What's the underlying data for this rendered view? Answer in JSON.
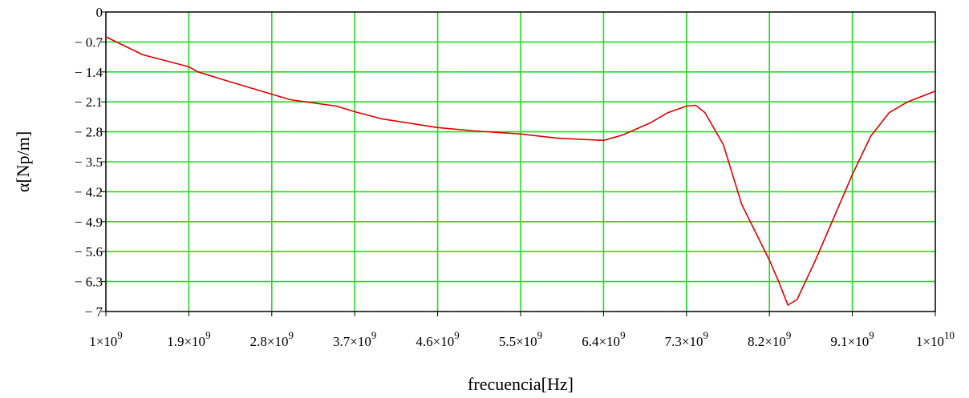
{
  "chart_data": {
    "type": "line",
    "title": "",
    "xlabel": "frecuencia[Hz]",
    "ylabel": "α[Np/m]",
    "xlim": [
      1000000000,
      10000000000
    ],
    "ylim": [
      -7,
      0
    ],
    "grid": true,
    "x_ticks": [
      1000000000,
      1900000000,
      2800000000,
      3700000000,
      4600000000,
      5500000000,
      6400000000,
      7300000000,
      8200000000,
      9100000000,
      10000000000
    ],
    "x_tick_labels": [
      {
        "mant": "1",
        "exp": "9"
      },
      {
        "mant": "1.9",
        "exp": "9"
      },
      {
        "mant": "2.8",
        "exp": "9"
      },
      {
        "mant": "3.7",
        "exp": "9"
      },
      {
        "mant": "4.6",
        "exp": "9"
      },
      {
        "mant": "5.5",
        "exp": "9"
      },
      {
        "mant": "6.4",
        "exp": "9"
      },
      {
        "mant": "7.3",
        "exp": "9"
      },
      {
        "mant": "8.2",
        "exp": "9"
      },
      {
        "mant": "9.1",
        "exp": "9"
      },
      {
        "mant": "1",
        "exp": "10"
      }
    ],
    "y_ticks": [
      0,
      -0.7,
      -1.4,
      -2.1,
      -2.8,
      -3.5,
      -4.2,
      -4.9,
      -5.6,
      -6.3,
      -7
    ],
    "y_tick_labels": [
      "0",
      "− 0.7",
      "− 1.4",
      "− 2.1",
      "− 2.8",
      "− 3.5",
      "− 4.2",
      "− 4.9",
      "− 5.6",
      "− 6.3",
      "− 7"
    ],
    "series": [
      {
        "color": "#e00000",
        "x": [
          1000000000,
          1400000000,
          1900000000,
          2000000000,
          2300000000,
          2800000000,
          3000000000,
          3500000000,
          3700000000,
          4000000000,
          4600000000,
          5000000000,
          5500000000,
          5900000000,
          6400000000,
          6600000000,
          6900000000,
          7100000000,
          7300000000,
          7400000000,
          7500000000,
          7700000000,
          7900000000,
          8200000000,
          8300000000,
          8400000000,
          8500000000,
          8700000000,
          8900000000,
          9100000000,
          9300000000,
          9500000000,
          9700000000,
          10000000000
        ],
        "y": [
          -0.58,
          -1.0,
          -1.28,
          -1.4,
          -1.6,
          -1.92,
          -2.05,
          -2.2,
          -2.33,
          -2.5,
          -2.7,
          -2.78,
          -2.85,
          -2.95,
          -3.0,
          -2.88,
          -2.6,
          -2.35,
          -2.2,
          -2.18,
          -2.35,
          -3.1,
          -4.5,
          -5.8,
          -6.3,
          -6.85,
          -6.72,
          -5.8,
          -4.8,
          -3.8,
          -2.9,
          -2.35,
          -2.1,
          -1.85
        ]
      }
    ]
  }
}
